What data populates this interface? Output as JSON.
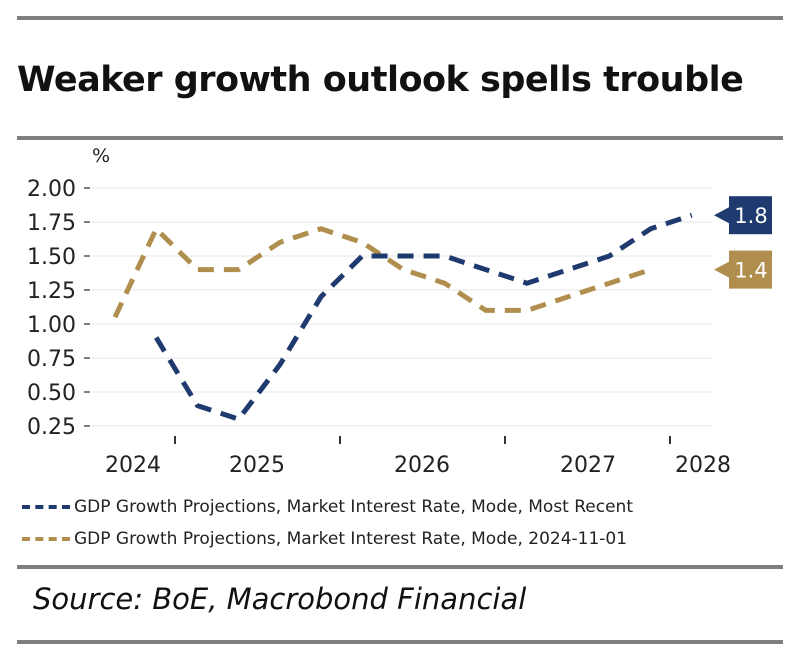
{
  "title": "Weaker growth outlook spells trouble",
  "source": "Source: BoE, Macrobond Financial",
  "chart_data": {
    "type": "line",
    "ylabel": "%",
    "ylim": [
      0.25,
      2.0
    ],
    "yticks": [
      2.0,
      1.75,
      1.5,
      1.25,
      1.0,
      0.75,
      0.5,
      0.25
    ],
    "ytick_labels": [
      "2.00",
      "1.75",
      "1.50",
      "1.25",
      "1.00",
      "0.75",
      "0.50",
      "0.25"
    ],
    "xlabels": [
      "2024",
      "2025",
      "2026",
      "2027",
      "2028"
    ],
    "grid": true,
    "legend_position": "bottom",
    "series": [
      {
        "name": "GDP Growth Projections, Market Interest Rate, Mode, Most Recent",
        "color": "#1f3a6e",
        "x": [
          1,
          2,
          3,
          4,
          5,
          6,
          7,
          8,
          9,
          10,
          11,
          12,
          13,
          14
        ],
        "values": [
          0.9,
          0.4,
          0.3,
          0.7,
          1.2,
          1.5,
          1.5,
          1.5,
          1.4,
          1.3,
          1.4,
          1.5,
          1.7,
          1.8
        ],
        "end_label": "1.8"
      },
      {
        "name": "GDP Growth Projections, Market Interest Rate, Mode, 2024-11-01",
        "color": "#b08f4e",
        "x": [
          0,
          1,
          2,
          3,
          4,
          5,
          6,
          7,
          8,
          9,
          10,
          11,
          12,
          13
        ],
        "values": [
          1.05,
          1.7,
          1.4,
          1.4,
          1.6,
          1.7,
          1.6,
          1.4,
          1.3,
          1.1,
          1.1,
          1.2,
          1.3,
          1.4
        ],
        "end_label": "1.4"
      }
    ]
  }
}
